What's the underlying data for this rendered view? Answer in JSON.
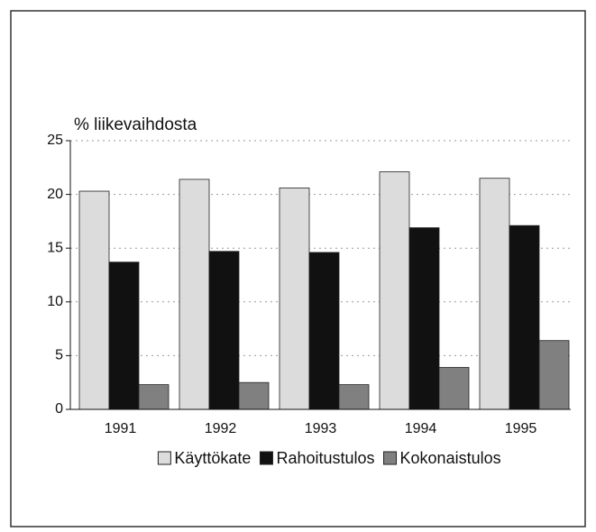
{
  "chart_data": {
    "type": "bar",
    "y_label": "% liikevaihdosta",
    "categories": [
      "1991",
      "1992",
      "1993",
      "1994",
      "1995"
    ],
    "series": [
      {
        "name": "Käyttökate",
        "color": "#dcdcdc",
        "values": [
          20.3,
          21.4,
          20.6,
          22.1,
          21.5
        ]
      },
      {
        "name": "Rahoitustulos",
        "color": "#111111",
        "values": [
          13.7,
          14.7,
          14.6,
          16.9,
          17.1
        ]
      },
      {
        "name": "Kokonaistulos",
        "color": "#808080",
        "values": [
          2.3,
          2.5,
          2.3,
          3.9,
          6.4
        ]
      }
    ],
    "ylim": [
      0,
      25
    ],
    "yticks": [
      0,
      5,
      10,
      15,
      20,
      25
    ],
    "grid": true,
    "legend": "bottom"
  }
}
